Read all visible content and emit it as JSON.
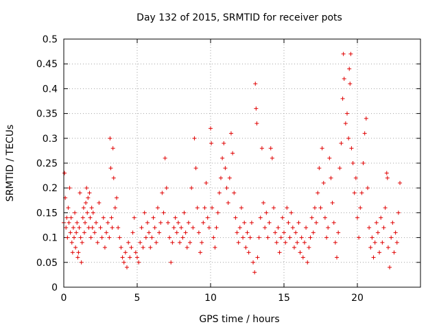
{
  "chart_data": {
    "type": "scatter",
    "title": "Day 132 of 2015, SRMTID for receiver pots",
    "xlabel": "GPS time / hours",
    "ylabel": "SRMTID / TECUs",
    "xlim": [
      0,
      24.3
    ],
    "ylim": [
      0,
      0.5
    ],
    "x_ticks": [
      0,
      5,
      10,
      15,
      20
    ],
    "y_ticks": [
      0,
      0.05,
      0.1,
      0.15,
      0.2,
      0.25,
      0.3,
      0.35,
      0.4,
      0.45,
      0.5
    ],
    "x_tick_labels": [
      "0",
      "5",
      "10",
      "15",
      "20"
    ],
    "y_tick_labels": [
      "0",
      "0.05",
      "0.1",
      "0.15",
      "0.2",
      "0.25",
      "0.3",
      "0.35",
      "0.4",
      "0.45",
      "0.5"
    ],
    "grid": true,
    "marker": "+",
    "color": "#e00000",
    "series": [
      {
        "name": "SRMTID",
        "points": [
          [
            0.0,
            0.13
          ],
          [
            0.05,
            0.23
          ],
          [
            0.1,
            0.18
          ],
          [
            0.15,
            0.12
          ],
          [
            0.2,
            0.14
          ],
          [
            0.25,
            0.1
          ],
          [
            0.3,
            0.16
          ],
          [
            0.35,
            0.13
          ],
          [
            0.4,
            0.2
          ],
          [
            0.45,
            0.11
          ],
          [
            0.5,
            0.14
          ],
          [
            0.55,
            0.09
          ],
          [
            0.6,
            0.07
          ],
          [
            0.65,
            0.12
          ],
          [
            0.7,
            0.1
          ],
          [
            0.75,
            0.15
          ],
          [
            0.8,
            0.08
          ],
          [
            0.85,
            0.11
          ],
          [
            0.9,
            0.13
          ],
          [
            0.95,
            0.06
          ],
          [
            1.0,
            0.07
          ],
          [
            1.05,
            0.12
          ],
          [
            1.1,
            0.19
          ],
          [
            1.15,
            0.1
          ],
          [
            1.2,
            0.05
          ],
          [
            1.25,
            0.09
          ],
          [
            1.3,
            0.14
          ],
          [
            1.35,
            0.16
          ],
          [
            1.4,
            0.11
          ],
          [
            1.45,
            0.13
          ],
          [
            1.5,
            0.17
          ],
          [
            1.55,
            0.2
          ],
          [
            1.6,
            0.15
          ],
          [
            1.65,
            0.18
          ],
          [
            1.7,
            0.12
          ],
          [
            1.75,
            0.19
          ],
          [
            1.8,
            0.14
          ],
          [
            1.85,
            0.1
          ],
          [
            1.9,
            0.16
          ],
          [
            1.95,
            0.12
          ],
          [
            2.0,
            0.15
          ],
          [
            2.1,
            0.11
          ],
          [
            2.2,
            0.13
          ],
          [
            2.3,
            0.09
          ],
          [
            2.4,
            0.17
          ],
          [
            2.5,
            0.12
          ],
          [
            2.6,
            0.1
          ],
          [
            2.7,
            0.14
          ],
          [
            2.8,
            0.08
          ],
          [
            2.9,
            0.11
          ],
          [
            3.0,
            0.13
          ],
          [
            3.1,
            0.1
          ],
          [
            3.15,
            0.3
          ],
          [
            3.2,
            0.24
          ],
          [
            3.25,
            0.14
          ],
          [
            3.3,
            0.12
          ],
          [
            3.35,
            0.28
          ],
          [
            3.4,
            0.22
          ],
          [
            3.5,
            0.16
          ],
          [
            3.6,
            0.18
          ],
          [
            3.7,
            0.12
          ],
          [
            3.8,
            0.1
          ],
          [
            3.9,
            0.08
          ],
          [
            4.0,
            0.06
          ],
          [
            4.1,
            0.05
          ],
          [
            4.2,
            0.07
          ],
          [
            4.3,
            0.04
          ],
          [
            4.4,
            0.09
          ],
          [
            4.5,
            0.06
          ],
          [
            4.6,
            0.08
          ],
          [
            4.7,
            0.11
          ],
          [
            4.8,
            0.14
          ],
          [
            4.9,
            0.07
          ],
          [
            5.0,
            0.06
          ],
          [
            5.1,
            0.05
          ],
          [
            5.2,
            0.09
          ],
          [
            5.3,
            0.12
          ],
          [
            5.4,
            0.08
          ],
          [
            5.5,
            0.15
          ],
          [
            5.6,
            0.1
          ],
          [
            5.7,
            0.13
          ],
          [
            5.8,
            0.11
          ],
          [
            5.9,
            0.08
          ],
          [
            6.0,
            0.1
          ],
          [
            6.1,
            0.14
          ],
          [
            6.2,
            0.12
          ],
          [
            6.3,
            0.09
          ],
          [
            6.4,
            0.16
          ],
          [
            6.5,
            0.11
          ],
          [
            6.6,
            0.13
          ],
          [
            6.7,
            0.19
          ],
          [
            6.8,
            0.15
          ],
          [
            6.9,
            0.26
          ],
          [
            7.0,
            0.2
          ],
          [
            7.1,
            0.13
          ],
          [
            7.2,
            0.1
          ],
          [
            7.3,
            0.05
          ],
          [
            7.4,
            0.09
          ],
          [
            7.5,
            0.12
          ],
          [
            7.6,
            0.14
          ],
          [
            7.7,
            0.11
          ],
          [
            7.8,
            0.13
          ],
          [
            7.9,
            0.09
          ],
          [
            8.0,
            0.12
          ],
          [
            8.1,
            0.1
          ],
          [
            8.2,
            0.15
          ],
          [
            8.3,
            0.11
          ],
          [
            8.4,
            0.08
          ],
          [
            8.5,
            0.13
          ],
          [
            8.6,
            0.09
          ],
          [
            8.7,
            0.2
          ],
          [
            8.8,
            0.12
          ],
          [
            8.9,
            0.3
          ],
          [
            9.0,
            0.24
          ],
          [
            9.1,
            0.16
          ],
          [
            9.2,
            0.11
          ],
          [
            9.3,
            0.07
          ],
          [
            9.4,
            0.09
          ],
          [
            9.5,
            0.13
          ],
          [
            9.6,
            0.16
          ],
          [
            9.7,
            0.21
          ],
          [
            9.8,
            0.14
          ],
          [
            9.9,
            0.12
          ],
          [
            10.0,
            0.32
          ],
          [
            10.05,
            0.29
          ],
          [
            10.1,
            0.16
          ],
          [
            10.2,
            0.1
          ],
          [
            10.3,
            0.08
          ],
          [
            10.4,
            0.12
          ],
          [
            10.5,
            0.15
          ],
          [
            10.6,
            0.19
          ],
          [
            10.7,
            0.22
          ],
          [
            10.8,
            0.26
          ],
          [
            10.9,
            0.29
          ],
          [
            11.0,
            0.24
          ],
          [
            11.1,
            0.2
          ],
          [
            11.2,
            0.17
          ],
          [
            11.3,
            0.22
          ],
          [
            11.4,
            0.31
          ],
          [
            11.5,
            0.27
          ],
          [
            11.6,
            0.19
          ],
          [
            11.7,
            0.14
          ],
          [
            11.8,
            0.11
          ],
          [
            11.9,
            0.09
          ],
          [
            12.0,
            0.12
          ],
          [
            12.1,
            0.16
          ],
          [
            12.2,
            0.1
          ],
          [
            12.3,
            0.13
          ],
          [
            12.4,
            0.08
          ],
          [
            12.5,
            0.11
          ],
          [
            12.6,
            0.07
          ],
          [
            12.7,
            0.1
          ],
          [
            12.8,
            0.13
          ],
          [
            12.9,
            0.05
          ],
          [
            13.0,
            0.03
          ],
          [
            13.05,
            0.41
          ],
          [
            13.1,
            0.36
          ],
          [
            13.15,
            0.33
          ],
          [
            13.2,
            0.06
          ],
          [
            13.3,
            0.1
          ],
          [
            13.4,
            0.14
          ],
          [
            13.5,
            0.28
          ],
          [
            13.6,
            0.17
          ],
          [
            13.7,
            0.12
          ],
          [
            13.8,
            0.15
          ],
          [
            13.9,
            0.1
          ],
          [
            14.0,
            0.13
          ],
          [
            14.1,
            0.28
          ],
          [
            14.2,
            0.26
          ],
          [
            14.3,
            0.16
          ],
          [
            14.4,
            0.11
          ],
          [
            14.5,
            0.09
          ],
          [
            14.6,
            0.12
          ],
          [
            14.7,
            0.07
          ],
          [
            14.8,
            0.1
          ],
          [
            14.9,
            0.14
          ],
          [
            15.0,
            0.11
          ],
          [
            15.1,
            0.09
          ],
          [
            15.2,
            0.16
          ],
          [
            15.3,
            0.13
          ],
          [
            15.4,
            0.1
          ],
          [
            15.5,
            0.15
          ],
          [
            15.6,
            0.12
          ],
          [
            15.7,
            0.08
          ],
          [
            15.8,
            0.11
          ],
          [
            15.9,
            0.09
          ],
          [
            16.0,
            0.13
          ],
          [
            16.1,
            0.07
          ],
          [
            16.2,
            0.1
          ],
          [
            16.3,
            0.06
          ],
          [
            16.4,
            0.09
          ],
          [
            16.5,
            0.12
          ],
          [
            16.6,
            0.05
          ],
          [
            16.7,
            0.08
          ],
          [
            16.8,
            0.1
          ],
          [
            16.9,
            0.14
          ],
          [
            17.0,
            0.11
          ],
          [
            17.1,
            0.16
          ],
          [
            17.2,
            0.13
          ],
          [
            17.3,
            0.19
          ],
          [
            17.4,
            0.24
          ],
          [
            17.5,
            0.16
          ],
          [
            17.6,
            0.28
          ],
          [
            17.7,
            0.21
          ],
          [
            17.8,
            0.14
          ],
          [
            17.9,
            0.1
          ],
          [
            18.0,
            0.12
          ],
          [
            18.1,
            0.26
          ],
          [
            18.2,
            0.22
          ],
          [
            18.3,
            0.17
          ],
          [
            18.4,
            0.13
          ],
          [
            18.5,
            0.09
          ],
          [
            18.6,
            0.06
          ],
          [
            18.7,
            0.11
          ],
          [
            18.8,
            0.24
          ],
          [
            18.9,
            0.29
          ],
          [
            19.0,
            0.38
          ],
          [
            19.05,
            0.47
          ],
          [
            19.1,
            0.42
          ],
          [
            19.2,
            0.33
          ],
          [
            19.3,
            0.35
          ],
          [
            19.4,
            0.3
          ],
          [
            19.45,
            0.44
          ],
          [
            19.5,
            0.41
          ],
          [
            19.55,
            0.47
          ],
          [
            19.6,
            0.28
          ],
          [
            19.7,
            0.25
          ],
          [
            19.8,
            0.19
          ],
          [
            19.9,
            0.22
          ],
          [
            20.0,
            0.14
          ],
          [
            20.1,
            0.1
          ],
          [
            20.2,
            0.16
          ],
          [
            20.3,
            0.19
          ],
          [
            20.4,
            0.25
          ],
          [
            20.5,
            0.31
          ],
          [
            20.6,
            0.34
          ],
          [
            20.7,
            0.2
          ],
          [
            20.8,
            0.12
          ],
          [
            20.9,
            0.08
          ],
          [
            21.0,
            0.1
          ],
          [
            21.1,
            0.06
          ],
          [
            21.2,
            0.09
          ],
          [
            21.3,
            0.13
          ],
          [
            21.4,
            0.11
          ],
          [
            21.5,
            0.07
          ],
          [
            21.6,
            0.14
          ],
          [
            21.7,
            0.09
          ],
          [
            21.8,
            0.12
          ],
          [
            21.9,
            0.16
          ],
          [
            22.0,
            0.23
          ],
          [
            22.05,
            0.22
          ],
          [
            22.1,
            0.08
          ],
          [
            22.2,
            0.04
          ],
          [
            22.3,
            0.1
          ],
          [
            22.4,
            0.13
          ],
          [
            22.5,
            0.07
          ],
          [
            22.6,
            0.11
          ],
          [
            22.7,
            0.09
          ],
          [
            22.8,
            0.15
          ],
          [
            22.9,
            0.21
          ]
        ]
      }
    ]
  }
}
